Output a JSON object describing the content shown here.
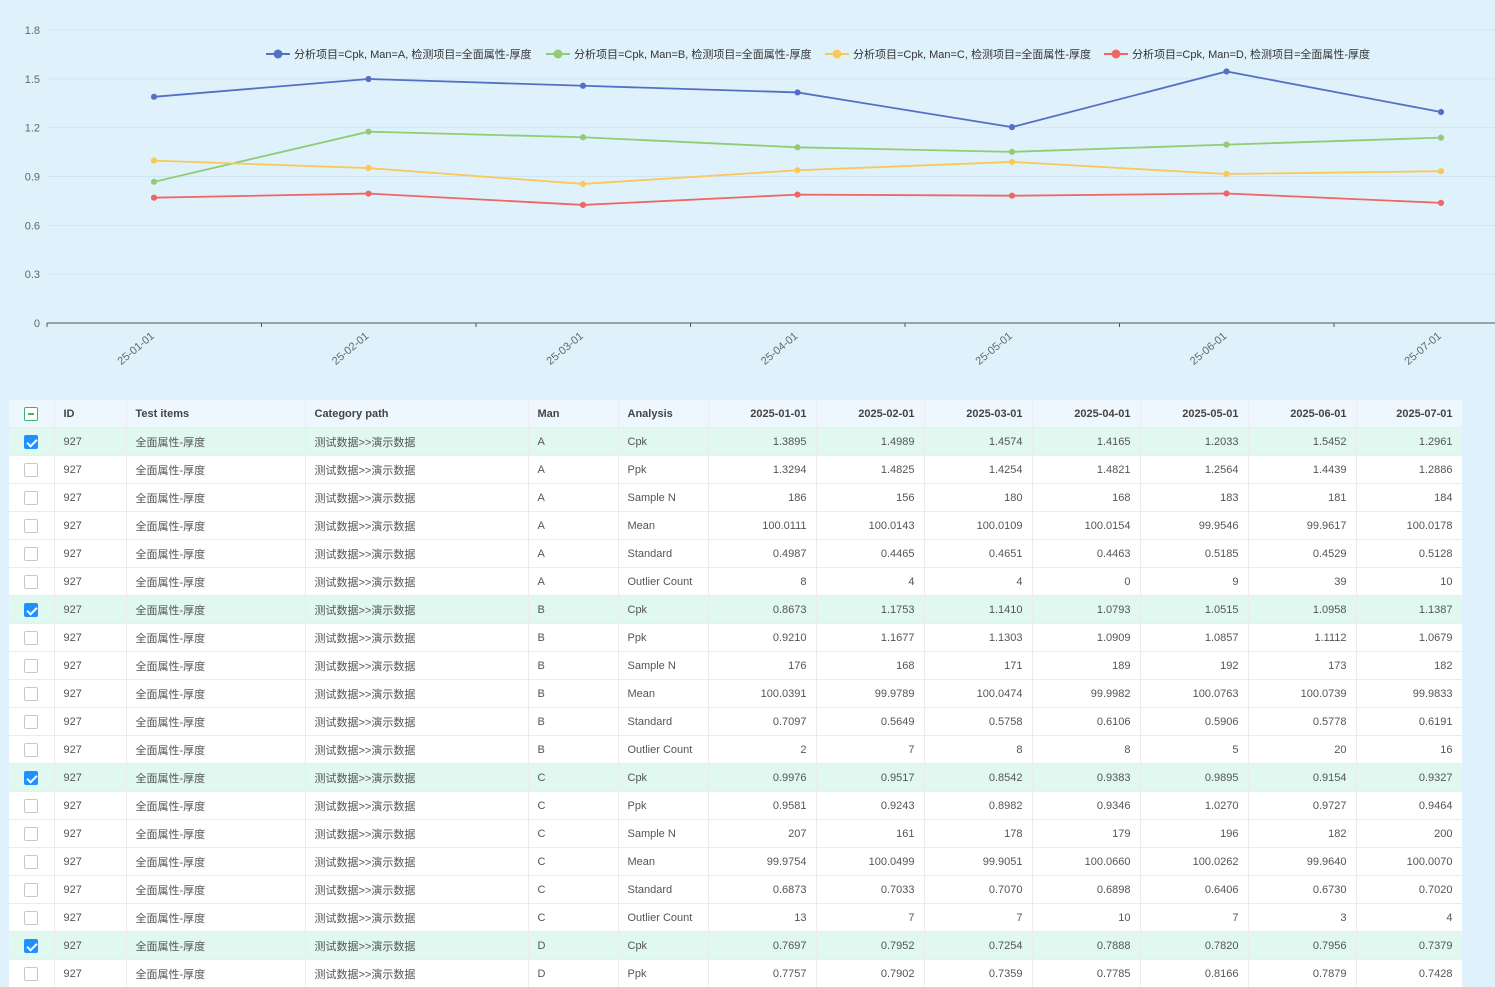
{
  "chart_data": {
    "type": "line",
    "categories": [
      "2025-01-01",
      "2025-02-01",
      "2025-03-01",
      "2025-04-01",
      "2025-05-01",
      "2025-06-01",
      "2025-07-01"
    ],
    "category_tick_labels": [
      "25-01-01",
      "25-02-01",
      "25-03-01",
      "25-04-01",
      "25-05-01",
      "25-06-01",
      "25-07-01"
    ],
    "ylim": [
      0,
      1.8
    ],
    "yticks": [
      "0",
      "0.3",
      "0.6",
      "0.9",
      "1.2",
      "1.5",
      "1.8"
    ],
    "grid": true,
    "legend_position": "top",
    "series": [
      {
        "name": "分析项目=Cpk, Man=A, 检测项目=全面属性-厚度",
        "color": "#5470c6",
        "values": [
          1.3895,
          1.4989,
          1.4574,
          1.4165,
          1.2033,
          1.5452,
          1.2961
        ]
      },
      {
        "name": "分析项目=Cpk, Man=B, 检测项目=全面属性-厚度",
        "color": "#91cc75",
        "values": [
          0.8673,
          1.1753,
          1.141,
          1.0793,
          1.0515,
          1.0958,
          1.1387
        ]
      },
      {
        "name": "分析项目=Cpk, Man=C, 检测项目=全面属性-厚度",
        "color": "#fac858",
        "values": [
          0.9976,
          0.9517,
          0.8542,
          0.9383,
          0.9895,
          0.9154,
          0.9327
        ]
      },
      {
        "name": "分析项目=Cpk, Man=D, 检测项目=全面属性-厚度",
        "color": "#ee6666",
        "values": [
          0.7697,
          0.7952,
          0.7254,
          0.7888,
          0.782,
          0.7956,
          0.7379
        ]
      }
    ]
  },
  "table": {
    "headers": {
      "id": "ID",
      "test_items": "Test items",
      "category_path": "Category path",
      "man": "Man",
      "analysis": "Analysis",
      "d1": "2025-01-01",
      "d2": "2025-02-01",
      "d3": "2025-03-01",
      "d4": "2025-04-01",
      "d5": "2025-05-01",
      "d6": "2025-06-01",
      "d7": "2025-07-01"
    },
    "rows": [
      {
        "checked": true,
        "id": "927",
        "test": "全面属性-厚度",
        "path": "测试数据>>演示数据",
        "man": "A",
        "analysis": "Cpk",
        "v": [
          "1.3895",
          "1.4989",
          "1.4574",
          "1.4165",
          "1.2033",
          "1.5452",
          "1.2961"
        ]
      },
      {
        "checked": false,
        "id": "927",
        "test": "全面属性-厚度",
        "path": "测试数据>>演示数据",
        "man": "A",
        "analysis": "Ppk",
        "v": [
          "1.3294",
          "1.4825",
          "1.4254",
          "1.4821",
          "1.2564",
          "1.4439",
          "1.2886"
        ]
      },
      {
        "checked": false,
        "id": "927",
        "test": "全面属性-厚度",
        "path": "测试数据>>演示数据",
        "man": "A",
        "analysis": "Sample N",
        "v": [
          "186",
          "156",
          "180",
          "168",
          "183",
          "181",
          "184"
        ]
      },
      {
        "checked": false,
        "id": "927",
        "test": "全面属性-厚度",
        "path": "测试数据>>演示数据",
        "man": "A",
        "analysis": "Mean",
        "v": [
          "100.0111",
          "100.0143",
          "100.0109",
          "100.0154",
          "99.9546",
          "99.9617",
          "100.0178"
        ]
      },
      {
        "checked": false,
        "id": "927",
        "test": "全面属性-厚度",
        "path": "测试数据>>演示数据",
        "man": "A",
        "analysis": "Standard",
        "v": [
          "0.4987",
          "0.4465",
          "0.4651",
          "0.4463",
          "0.5185",
          "0.4529",
          "0.5128"
        ]
      },
      {
        "checked": false,
        "id": "927",
        "test": "全面属性-厚度",
        "path": "测试数据>>演示数据",
        "man": "A",
        "analysis": "Outlier Count",
        "v": [
          "8",
          "4",
          "4",
          "0",
          "9",
          "39",
          "10"
        ]
      },
      {
        "checked": true,
        "id": "927",
        "test": "全面属性-厚度",
        "path": "测试数据>>演示数据",
        "man": "B",
        "analysis": "Cpk",
        "v": [
          "0.8673",
          "1.1753",
          "1.1410",
          "1.0793",
          "1.0515",
          "1.0958",
          "1.1387"
        ]
      },
      {
        "checked": false,
        "id": "927",
        "test": "全面属性-厚度",
        "path": "测试数据>>演示数据",
        "man": "B",
        "analysis": "Ppk",
        "v": [
          "0.9210",
          "1.1677",
          "1.1303",
          "1.0909",
          "1.0857",
          "1.1112",
          "1.0679"
        ]
      },
      {
        "checked": false,
        "id": "927",
        "test": "全面属性-厚度",
        "path": "测试数据>>演示数据",
        "man": "B",
        "analysis": "Sample N",
        "v": [
          "176",
          "168",
          "171",
          "189",
          "192",
          "173",
          "182"
        ]
      },
      {
        "checked": false,
        "id": "927",
        "test": "全面属性-厚度",
        "path": "测试数据>>演示数据",
        "man": "B",
        "analysis": "Mean",
        "v": [
          "100.0391",
          "99.9789",
          "100.0474",
          "99.9982",
          "100.0763",
          "100.0739",
          "99.9833"
        ]
      },
      {
        "checked": false,
        "id": "927",
        "test": "全面属性-厚度",
        "path": "测试数据>>演示数据",
        "man": "B",
        "analysis": "Standard",
        "v": [
          "0.7097",
          "0.5649",
          "0.5758",
          "0.6106",
          "0.5906",
          "0.5778",
          "0.6191"
        ]
      },
      {
        "checked": false,
        "id": "927",
        "test": "全面属性-厚度",
        "path": "测试数据>>演示数据",
        "man": "B",
        "analysis": "Outlier Count",
        "v": [
          "2",
          "7",
          "8",
          "8",
          "5",
          "20",
          "16"
        ]
      },
      {
        "checked": true,
        "id": "927",
        "test": "全面属性-厚度",
        "path": "测试数据>>演示数据",
        "man": "C",
        "analysis": "Cpk",
        "v": [
          "0.9976",
          "0.9517",
          "0.8542",
          "0.9383",
          "0.9895",
          "0.9154",
          "0.9327"
        ]
      },
      {
        "checked": false,
        "id": "927",
        "test": "全面属性-厚度",
        "path": "测试数据>>演示数据",
        "man": "C",
        "analysis": "Ppk",
        "v": [
          "0.9581",
          "0.9243",
          "0.8982",
          "0.9346",
          "1.0270",
          "0.9727",
          "0.9464"
        ]
      },
      {
        "checked": false,
        "id": "927",
        "test": "全面属性-厚度",
        "path": "测试数据>>演示数据",
        "man": "C",
        "analysis": "Sample N",
        "v": [
          "207",
          "161",
          "178",
          "179",
          "196",
          "182",
          "200"
        ]
      },
      {
        "checked": false,
        "id": "927",
        "test": "全面属性-厚度",
        "path": "测试数据>>演示数据",
        "man": "C",
        "analysis": "Mean",
        "v": [
          "99.9754",
          "100.0499",
          "99.9051",
          "100.0660",
          "100.0262",
          "99.9640",
          "100.0070"
        ]
      },
      {
        "checked": false,
        "id": "927",
        "test": "全面属性-厚度",
        "path": "测试数据>>演示数据",
        "man": "C",
        "analysis": "Standard",
        "v": [
          "0.6873",
          "0.7033",
          "0.7070",
          "0.6898",
          "0.6406",
          "0.6730",
          "0.7020"
        ]
      },
      {
        "checked": false,
        "id": "927",
        "test": "全面属性-厚度",
        "path": "测试数据>>演示数据",
        "man": "C",
        "analysis": "Outlier Count",
        "v": [
          "13",
          "7",
          "7",
          "10",
          "7",
          "3",
          "4"
        ]
      },
      {
        "checked": true,
        "id": "927",
        "test": "全面属性-厚度",
        "path": "测试数据>>演示数据",
        "man": "D",
        "analysis": "Cpk",
        "v": [
          "0.7697",
          "0.7952",
          "0.7254",
          "0.7888",
          "0.7820",
          "0.7956",
          "0.7379"
        ]
      },
      {
        "checked": false,
        "id": "927",
        "test": "全面属性-厚度",
        "path": "测试数据>>演示数据",
        "man": "D",
        "analysis": "Ppk",
        "v": [
          "0.7757",
          "0.7902",
          "0.7359",
          "0.7785",
          "0.8166",
          "0.7879",
          "0.7428"
        ]
      }
    ]
  }
}
